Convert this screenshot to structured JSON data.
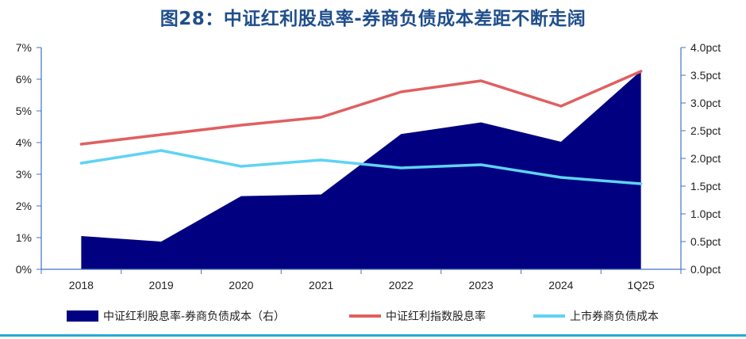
{
  "title": "图28：中证红利股息率-券商负债成本差距不断走阔",
  "colors": {
    "title": "#1f4e8c",
    "area": "#000080",
    "line_dividend": "#e06060",
    "line_cost": "#5fd3f3",
    "axis": "#4472c4",
    "bottom_rule": "#29a8d8"
  },
  "chart_data": {
    "type": "line",
    "categories": [
      "2018",
      "2019",
      "2020",
      "2021",
      "2022",
      "2023",
      "2024",
      "1Q25"
    ],
    "left_axis": {
      "ylim": [
        0,
        7
      ],
      "ticks": [
        "0%",
        "1%",
        "2%",
        "3%",
        "4%",
        "5%",
        "6%",
        "7%"
      ]
    },
    "right_axis": {
      "ylim": [
        0,
        4.0
      ],
      "ticks": [
        "0.0pct",
        "0.5pct",
        "1.0pct",
        "1.5pct",
        "2.0pct",
        "2.5pct",
        "3.0pct",
        "3.5pct",
        "4.0pct"
      ]
    },
    "series": [
      {
        "name": "中证红利股息率-券商负债成本（右）",
        "type": "area",
        "axis": "right",
        "values": [
          0.6,
          0.5,
          1.32,
          1.35,
          2.44,
          2.65,
          2.3,
          3.58
        ]
      },
      {
        "name": "中证红利指数股息率",
        "type": "line",
        "axis": "left",
        "values": [
          3.95,
          4.25,
          4.55,
          4.8,
          5.6,
          5.95,
          5.15,
          6.25
        ]
      },
      {
        "name": "上市券商负债成本",
        "type": "line",
        "axis": "left",
        "values": [
          3.35,
          3.75,
          3.25,
          3.45,
          3.2,
          3.3,
          2.9,
          2.7
        ]
      }
    ],
    "grid": false,
    "legend_position": "bottom"
  }
}
